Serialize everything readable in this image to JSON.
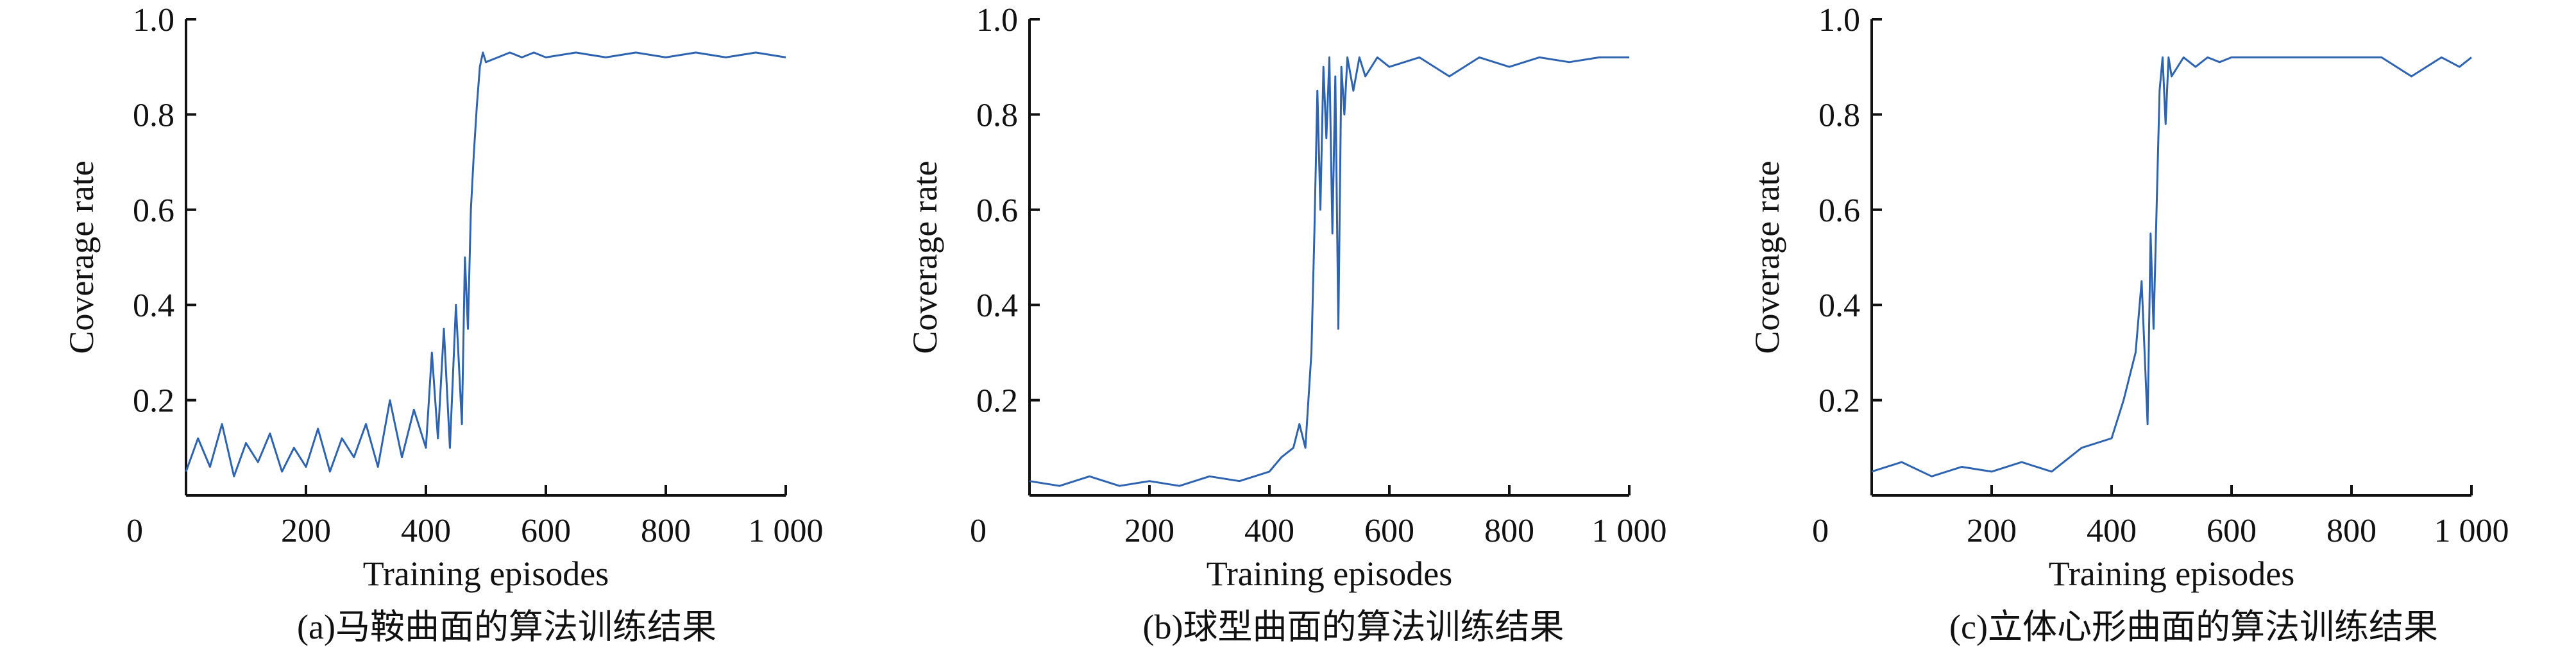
{
  "colors": {
    "series": "#2e63b0",
    "axis": "#111111"
  },
  "chart_data": [
    {
      "type": "line",
      "caption": "(a)马鞍曲面的算法训练结果",
      "xlabel": "Training episodes",
      "ylabel": "Coverage rate",
      "xlim": [
        0,
        1000
      ],
      "ylim": [
        0,
        1.0
      ],
      "xticks": [
        0,
        200,
        400,
        600,
        800,
        1000
      ],
      "xtick_labels": [
        "0",
        "200",
        "400",
        "600",
        "800",
        "1 000"
      ],
      "yticks": [
        0.2,
        0.4,
        0.6,
        0.8,
        1.0
      ],
      "ytick_labels": [
        "0.2",
        "0.4",
        "0.6",
        "0.8",
        "1.0"
      ],
      "grid": false,
      "series": [
        {
          "x": [
            0,
            20,
            40,
            60,
            80,
            100,
            120,
            140,
            160,
            180,
            200,
            220,
            240,
            260,
            280,
            300,
            320,
            340,
            360,
            380,
            400,
            410,
            420,
            430,
            440,
            450,
            460,
            465,
            470,
            475,
            480,
            485,
            490,
            495,
            500,
            520,
            540,
            560,
            580,
            600,
            650,
            700,
            750,
            800,
            850,
            900,
            950,
            1000
          ],
          "y": [
            0.05,
            0.12,
            0.06,
            0.15,
            0.04,
            0.11,
            0.07,
            0.13,
            0.05,
            0.1,
            0.06,
            0.14,
            0.05,
            0.12,
            0.08,
            0.15,
            0.06,
            0.2,
            0.08,
            0.18,
            0.1,
            0.3,
            0.12,
            0.35,
            0.1,
            0.4,
            0.15,
            0.5,
            0.35,
            0.6,
            0.72,
            0.82,
            0.9,
            0.93,
            0.91,
            0.92,
            0.93,
            0.92,
            0.93,
            0.92,
            0.93,
            0.92,
            0.93,
            0.92,
            0.93,
            0.92,
            0.93,
            0.92
          ]
        }
      ]
    },
    {
      "type": "line",
      "caption": "(b)球型曲面的算法训练结果",
      "xlabel": "Training episodes",
      "ylabel": "Coverage rate",
      "xlim": [
        0,
        1000
      ],
      "ylim": [
        0,
        1.0
      ],
      "xticks": [
        0,
        200,
        400,
        600,
        800,
        1000
      ],
      "xtick_labels": [
        "0",
        "200",
        "400",
        "600",
        "800",
        "1 000"
      ],
      "yticks": [
        0.2,
        0.4,
        0.6,
        0.8,
        1.0
      ],
      "ytick_labels": [
        "0.2",
        "0.4",
        "0.6",
        "0.8",
        "1.0"
      ],
      "grid": false,
      "series": [
        {
          "x": [
            0,
            50,
            100,
            150,
            200,
            250,
            300,
            350,
            400,
            420,
            440,
            450,
            460,
            470,
            475,
            480,
            485,
            490,
            495,
            500,
            505,
            510,
            515,
            520,
            525,
            530,
            540,
            550,
            560,
            580,
            600,
            650,
            700,
            750,
            800,
            850,
            900,
            950,
            1000
          ],
          "y": [
            0.03,
            0.02,
            0.04,
            0.02,
            0.03,
            0.02,
            0.04,
            0.03,
            0.05,
            0.08,
            0.1,
            0.15,
            0.1,
            0.3,
            0.55,
            0.85,
            0.6,
            0.9,
            0.75,
            0.92,
            0.55,
            0.88,
            0.35,
            0.9,
            0.8,
            0.92,
            0.85,
            0.92,
            0.88,
            0.92,
            0.9,
            0.92,
            0.88,
            0.92,
            0.9,
            0.92,
            0.91,
            0.92,
            0.92
          ]
        }
      ]
    },
    {
      "type": "line",
      "caption": "(c)立体心形曲面的算法训练结果",
      "xlabel": "Training episodes",
      "ylabel": "Coverage rate",
      "xlim": [
        0,
        1000
      ],
      "ylim": [
        0,
        1.0
      ],
      "xticks": [
        0,
        200,
        400,
        600,
        800,
        1000
      ],
      "xtick_labels": [
        "0",
        "200",
        "400",
        "600",
        "800",
        "1 000"
      ],
      "yticks": [
        0.2,
        0.4,
        0.6,
        0.8,
        1.0
      ],
      "ytick_labels": [
        "0.2",
        "0.4",
        "0.6",
        "0.8",
        "1.0"
      ],
      "grid": false,
      "series": [
        {
          "x": [
            0,
            50,
            100,
            150,
            200,
            250,
            300,
            350,
            400,
            420,
            440,
            450,
            460,
            465,
            470,
            475,
            480,
            485,
            490,
            495,
            500,
            520,
            540,
            560,
            580,
            600,
            650,
            700,
            750,
            800,
            850,
            900,
            950,
            980,
            1000
          ],
          "y": [
            0.05,
            0.07,
            0.04,
            0.06,
            0.05,
            0.07,
            0.05,
            0.1,
            0.12,
            0.2,
            0.3,
            0.45,
            0.15,
            0.55,
            0.35,
            0.6,
            0.85,
            0.92,
            0.78,
            0.92,
            0.88,
            0.92,
            0.9,
            0.92,
            0.91,
            0.92,
            0.92,
            0.92,
            0.92,
            0.92,
            0.92,
            0.88,
            0.92,
            0.9,
            0.92
          ]
        }
      ]
    }
  ]
}
